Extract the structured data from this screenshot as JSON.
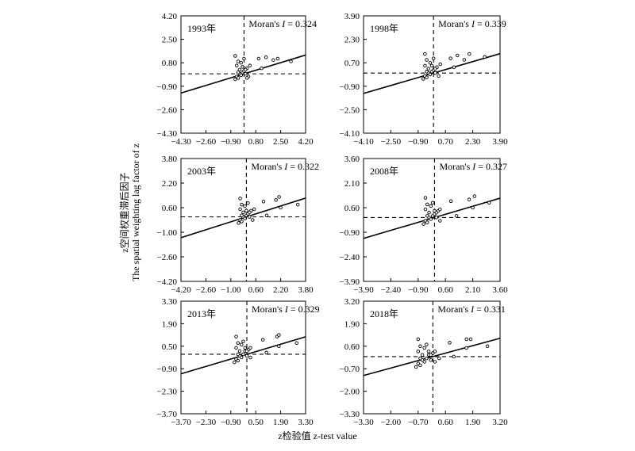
{
  "figure": {
    "ylabel_cn": "z空间权重滞后因子",
    "ylabel_en": "The spatial weighting lag factor of z",
    "xlabel": "z检验值  z-test value"
  },
  "chart_data": [
    {
      "type": "scatter",
      "year_label": "1993年",
      "moran_prefix": "Moran's ",
      "moran_symbol": "I",
      "moran_value": " = 0.324",
      "xlim": [
        -4.3,
        4.2
      ],
      "ylim": [
        -4.3,
        4.2
      ],
      "xticks": [
        "−4.30",
        "−2.60",
        "−0.90",
        "0.80",
        "2.50",
        "4.20"
      ],
      "yticks": [
        "4.20",
        "2.50",
        "0.80",
        "−0.90",
        "−2.60",
        "−4.30"
      ],
      "slope": 0.324,
      "intercept": 0.0,
      "points": [
        [
          -0.6,
          -0.4
        ],
        [
          -0.5,
          -0.2
        ],
        [
          -0.4,
          -0.3
        ],
        [
          -0.3,
          0.0
        ],
        [
          -0.2,
          -0.1
        ],
        [
          -0.1,
          0.1
        ],
        [
          0.0,
          0.2
        ],
        [
          0.1,
          0.0
        ],
        [
          -0.3,
          0.3
        ],
        [
          -0.5,
          0.6
        ],
        [
          0.2,
          0.4
        ],
        [
          -0.2,
          0.8
        ],
        [
          0.3,
          -0.2
        ],
        [
          -0.4,
          0.1
        ],
        [
          0.1,
          0.3
        ],
        [
          0.4,
          0.6
        ],
        [
          0.0,
          1.1
        ],
        [
          -0.6,
          1.3
        ],
        [
          -0.4,
          0.9
        ],
        [
          1.0,
          1.1
        ],
        [
          1.5,
          1.2
        ],
        [
          2.0,
          1.0
        ],
        [
          2.3,
          1.1
        ],
        [
          3.2,
          0.9
        ],
        [
          1.2,
          0.4
        ],
        [
          -0.1,
          0.5
        ],
        [
          0.2,
          -0.3
        ]
      ]
    },
    {
      "type": "scatter",
      "year_label": "1998年",
      "moran_prefix": "Moran's ",
      "moran_symbol": "I",
      "moran_value": " = 0.339",
      "xlim": [
        -4.1,
        3.9
      ],
      "ylim": [
        -4.1,
        3.9
      ],
      "xticks": [
        "−4.10",
        "−2.50",
        "−0.90",
        "0.70",
        "2.30",
        "3.90"
      ],
      "yticks": [
        "3.90",
        "2.30",
        "0.70",
        "−0.90",
        "−2.50",
        "−4.10"
      ],
      "slope": 0.339,
      "intercept": 0.0,
      "points": [
        [
          -0.6,
          -0.4
        ],
        [
          -0.5,
          -0.2
        ],
        [
          -0.4,
          -0.3
        ],
        [
          -0.3,
          0.0
        ],
        [
          -0.2,
          -0.1
        ],
        [
          -0.1,
          0.1
        ],
        [
          0.0,
          0.2
        ],
        [
          0.1,
          0.0
        ],
        [
          -0.3,
          0.3
        ],
        [
          -0.5,
          0.5
        ],
        [
          0.2,
          0.4
        ],
        [
          -0.2,
          0.7
        ],
        [
          0.3,
          -0.2
        ],
        [
          -0.4,
          0.1
        ],
        [
          0.1,
          0.3
        ],
        [
          0.4,
          0.6
        ],
        [
          0.0,
          1.0
        ],
        [
          -0.5,
          1.3
        ],
        [
          -0.4,
          0.9
        ],
        [
          1.0,
          1.0
        ],
        [
          1.4,
          1.2
        ],
        [
          1.8,
          0.9
        ],
        [
          2.1,
          1.3
        ],
        [
          3.0,
          1.1
        ],
        [
          1.2,
          0.4
        ],
        [
          -0.1,
          0.5
        ]
      ]
    },
    {
      "type": "scatter",
      "year_label": "2003年",
      "moran_prefix": "Moran's ",
      "moran_symbol": "I",
      "moran_value": " = 0.322",
      "xlim": [
        -4.2,
        3.8
      ],
      "ylim": [
        -4.2,
        3.8
      ],
      "xticks": [
        "−4.20",
        "−2.60",
        "−1.00",
        "0.60",
        "2.20",
        "3.80"
      ],
      "yticks": [
        "3.80",
        "2.20",
        "0.60",
        "−1.00",
        "−2.60",
        "−4.20"
      ],
      "slope": 0.322,
      "intercept": 0.0,
      "points": [
        [
          -0.5,
          -0.4
        ],
        [
          -0.4,
          -0.2
        ],
        [
          -0.3,
          -0.3
        ],
        [
          -0.2,
          0.0
        ],
        [
          -0.1,
          -0.1
        ],
        [
          0.0,
          0.1
        ],
        [
          0.1,
          0.2
        ],
        [
          0.2,
          0.0
        ],
        [
          -0.2,
          0.3
        ],
        [
          -0.4,
          0.5
        ],
        [
          0.3,
          0.4
        ],
        [
          -0.1,
          0.7
        ],
        [
          0.4,
          -0.2
        ],
        [
          -0.3,
          0.1
        ],
        [
          0.2,
          0.3
        ],
        [
          0.5,
          0.5
        ],
        [
          0.1,
          0.9
        ],
        [
          -0.4,
          1.2
        ],
        [
          -0.3,
          0.8
        ],
        [
          1.1,
          1.0
        ],
        [
          1.9,
          1.1
        ],
        [
          2.1,
          1.3
        ],
        [
          2.2,
          0.6
        ],
        [
          3.3,
          0.8
        ],
        [
          1.3,
          0.1
        ],
        [
          0.0,
          0.4
        ]
      ]
    },
    {
      "type": "scatter",
      "year_label": "2008年",
      "moran_prefix": "Moran's ",
      "moran_symbol": "I",
      "moran_value": " = 0.327",
      "xlim": [
        -3.9,
        3.6
      ],
      "ylim": [
        -3.9,
        3.6
      ],
      "xticks": [
        "−3.90",
        "−2.40",
        "−0.90",
        "0.60",
        "2.10",
        "3.60"
      ],
      "yticks": [
        "3.60",
        "2.10",
        "0.60",
        "−0.90",
        "−2.40",
        "−3.90"
      ],
      "slope": 0.327,
      "intercept": 0.0,
      "points": [
        [
          -0.6,
          -0.4
        ],
        [
          -0.5,
          -0.2
        ],
        [
          -0.4,
          -0.3
        ],
        [
          -0.3,
          0.0
        ],
        [
          -0.2,
          -0.1
        ],
        [
          -0.1,
          0.1
        ],
        [
          0.0,
          0.2
        ],
        [
          0.1,
          0.0
        ],
        [
          -0.3,
          0.3
        ],
        [
          -0.5,
          0.5
        ],
        [
          0.2,
          0.4
        ],
        [
          -0.2,
          0.7
        ],
        [
          0.3,
          -0.2
        ],
        [
          -0.4,
          0.1
        ],
        [
          0.1,
          0.3
        ],
        [
          0.3,
          0.5
        ],
        [
          -0.1,
          0.9
        ],
        [
          -0.5,
          1.2
        ],
        [
          -0.4,
          0.8
        ],
        [
          0.9,
          1.0
        ],
        [
          1.9,
          1.1
        ],
        [
          2.2,
          1.3
        ],
        [
          2.1,
          0.6
        ],
        [
          3.0,
          0.9
        ],
        [
          1.2,
          0.1
        ],
        [
          0.0,
          0.4
        ]
      ]
    },
    {
      "type": "scatter",
      "year_label": "2013年",
      "moran_prefix": "Moran's ",
      "moran_symbol": "I",
      "moran_value": " = 0.329",
      "xlim": [
        -3.7,
        3.3
      ],
      "ylim": [
        -3.7,
        3.3
      ],
      "xticks": [
        "−3.70",
        "−2.30",
        "−0.90",
        "0.50",
        "1.90",
        "3.30"
      ],
      "yticks": [
        "3.30",
        "1.90",
        "0.50",
        "−0.90",
        "−2.30",
        "−3.70"
      ],
      "slope": 0.329,
      "intercept": 0.0,
      "points": [
        [
          -0.7,
          -0.5
        ],
        [
          -0.6,
          -0.3
        ],
        [
          -0.5,
          -0.4
        ],
        [
          -0.4,
          -0.1
        ],
        [
          -0.3,
          -0.2
        ],
        [
          -0.2,
          0.0
        ],
        [
          -0.1,
          0.2
        ],
        [
          0.0,
          -0.1
        ],
        [
          -0.4,
          0.2
        ],
        [
          -0.6,
          0.4
        ],
        [
          0.1,
          0.3
        ],
        [
          -0.3,
          0.6
        ],
        [
          0.2,
          -0.2
        ],
        [
          -0.5,
          0.0
        ],
        [
          0.0,
          0.2
        ],
        [
          0.2,
          0.4
        ],
        [
          -0.2,
          0.8
        ],
        [
          -0.6,
          1.1
        ],
        [
          -0.5,
          0.7
        ],
        [
          0.9,
          0.9
        ],
        [
          1.7,
          1.1
        ],
        [
          1.8,
          1.2
        ],
        [
          1.8,
          0.5
        ],
        [
          2.8,
          0.7
        ],
        [
          1.1,
          0.1
        ],
        [
          -0.1,
          0.4
        ]
      ]
    },
    {
      "type": "scatter",
      "year_label": "2018年",
      "moran_prefix": "Moran's ",
      "moran_symbol": "I",
      "moran_value": " = 0.331",
      "xlim": [
        -3.3,
        3.2
      ],
      "ylim": [
        -3.3,
        3.2
      ],
      "xticks": [
        "−3.30",
        "−2.00",
        "−0.70",
        "0.60",
        "1.90",
        "3.20"
      ],
      "yticks": [
        "3.20",
        "1.90",
        "0.60",
        "−0.70",
        "−2.00",
        "−3.30"
      ],
      "slope": 0.331,
      "intercept": 0.0,
      "points": [
        [
          -0.8,
          -0.6
        ],
        [
          -0.7,
          -0.4
        ],
        [
          -0.6,
          -0.5
        ],
        [
          -0.5,
          -0.2
        ],
        [
          -0.4,
          -0.3
        ],
        [
          -0.3,
          -0.1
        ],
        [
          -0.2,
          0.1
        ],
        [
          -0.1,
          -0.2
        ],
        [
          -0.5,
          0.1
        ],
        [
          -0.7,
          0.3
        ],
        [
          0.0,
          0.2
        ],
        [
          -0.4,
          0.5
        ],
        [
          0.1,
          -0.3
        ],
        [
          -0.6,
          -0.1
        ],
        [
          -0.1,
          0.1
        ],
        [
          0.1,
          0.3
        ],
        [
          -0.3,
          0.7
        ],
        [
          -0.7,
          1.0
        ],
        [
          -0.6,
          0.6
        ],
        [
          0.8,
          0.8
        ],
        [
          1.6,
          1.0
        ],
        [
          1.8,
          1.0
        ],
        [
          1.6,
          0.5
        ],
        [
          2.6,
          0.6
        ],
        [
          1.0,
          0.0
        ],
        [
          -0.2,
          0.3
        ],
        [
          0.3,
          -0.1
        ]
      ]
    }
  ]
}
